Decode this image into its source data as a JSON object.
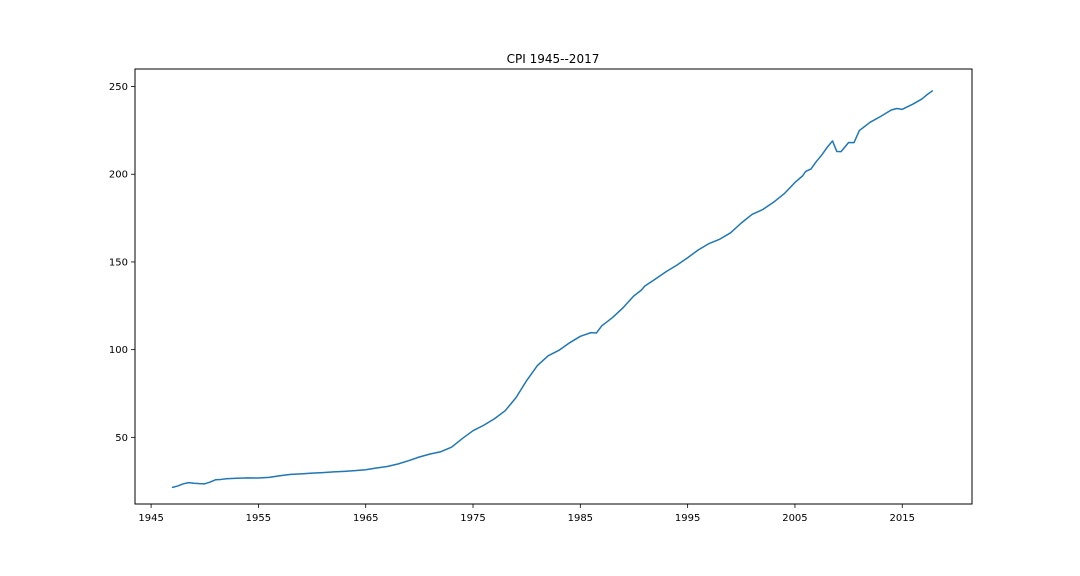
{
  "chart_data": {
    "type": "line",
    "title": "CPI 1945--2017",
    "xlabel": "",
    "ylabel": "",
    "xlim": [
      1943.5,
      2021.5
    ],
    "ylim": [
      12,
      260
    ],
    "xticks": [
      1945,
      1955,
      1965,
      1975,
      1985,
      1995,
      2005,
      2015
    ],
    "yticks": [
      50,
      100,
      150,
      200,
      250
    ],
    "grid": false,
    "line_color": "#1f77b4",
    "series": [
      {
        "x": [
          1947.0,
          1947.5,
          1948.0,
          1948.5,
          1949.0,
          1949.5,
          1950.0,
          1950.5,
          1951.0,
          1951.5,
          1952.0,
          1953.0,
          1954.0,
          1955.0,
          1956.0,
          1957.0,
          1958.0,
          1959.0,
          1960.0,
          1961.0,
          1962.0,
          1963.0,
          1964.0,
          1965.0,
          1966.0,
          1967.0,
          1968.0,
          1969.0,
          1970.0,
          1971.0,
          1972.0,
          1973.0,
          1974.0,
          1975.0,
          1976.0,
          1977.0,
          1978.0,
          1979.0,
          1980.0,
          1981.0,
          1982.0,
          1983.0,
          1984.0,
          1985.0,
          1986.0,
          1986.5,
          1987.0,
          1988.0,
          1989.0,
          1990.0,
          1990.7,
          1991.0,
          1992.0,
          1993.0,
          1994.0,
          1995.0,
          1996.0,
          1997.0,
          1998.0,
          1999.0,
          2000.0,
          2001.0,
          2002.0,
          2003.0,
          2004.0,
          2005.0,
          2005.7,
          2006.0,
          2006.5,
          2007.0,
          2007.5,
          2008.0,
          2008.5,
          2008.9,
          2009.3,
          2010.0,
          2010.5,
          2011.0,
          2012.0,
          2013.0,
          2014.0,
          2014.5,
          2015.0,
          2016.0,
          2016.8,
          2017.3,
          2017.8
        ],
        "y": [
          21.5,
          22.3,
          23.5,
          24.2,
          23.8,
          23.6,
          23.5,
          24.5,
          25.8,
          26.0,
          26.4,
          26.7,
          26.9,
          26.8,
          27.2,
          28.1,
          28.9,
          29.2,
          29.6,
          29.9,
          30.3,
          30.6,
          31.0,
          31.5,
          32.5,
          33.4,
          34.8,
          36.7,
          38.8,
          40.5,
          41.8,
          44.4,
          49.3,
          53.8,
          56.9,
          60.6,
          65.2,
          72.6,
          82.4,
          90.9,
          96.5,
          99.6,
          103.9,
          107.6,
          109.7,
          109.5,
          113.6,
          118.3,
          124.0,
          130.7,
          134.0,
          136.2,
          140.3,
          144.5,
          148.2,
          152.4,
          156.9,
          160.5,
          163.0,
          166.6,
          172.2,
          177.1,
          179.9,
          184.0,
          188.9,
          195.3,
          199.0,
          201.6,
          203.0,
          207.3,
          211.0,
          215.3,
          219.0,
          213.0,
          212.9,
          218.1,
          218.0,
          224.9,
          229.6,
          233.0,
          236.7,
          237.5,
          237.0,
          240.0,
          242.8,
          245.3,
          247.5
        ]
      }
    ]
  }
}
